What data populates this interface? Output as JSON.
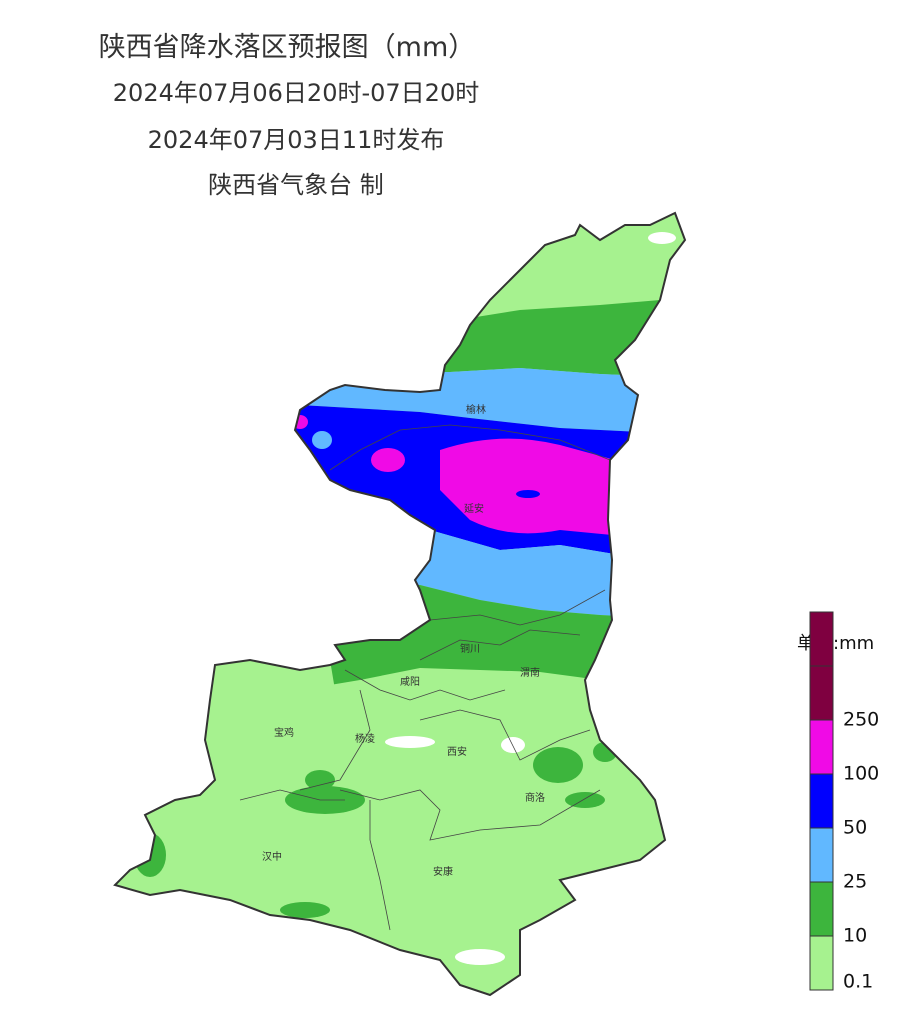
{
  "header": {
    "title": "陕西省降水落区预报图（mm）",
    "valid_period": "2024年07月06日20时-07日20时",
    "issued": "2024年07月03日11时发布",
    "issuer": "陕西省气象台 制"
  },
  "cities": [
    "榆林",
    "延安",
    "铜川",
    "咸阳",
    "渭南",
    "宝鸡",
    "杨凌",
    "西安",
    "商洛",
    "汉中",
    "安康"
  ],
  "legend": {
    "title": "单位:mm",
    "ticks": [
      0.1,
      10,
      25,
      50,
      100,
      250
    ],
    "colors": [
      "#a6f28f",
      "#3db53d",
      "#61b8ff",
      "#0000fe",
      "#f00ae6",
      "#7f0040"
    ]
  }
}
